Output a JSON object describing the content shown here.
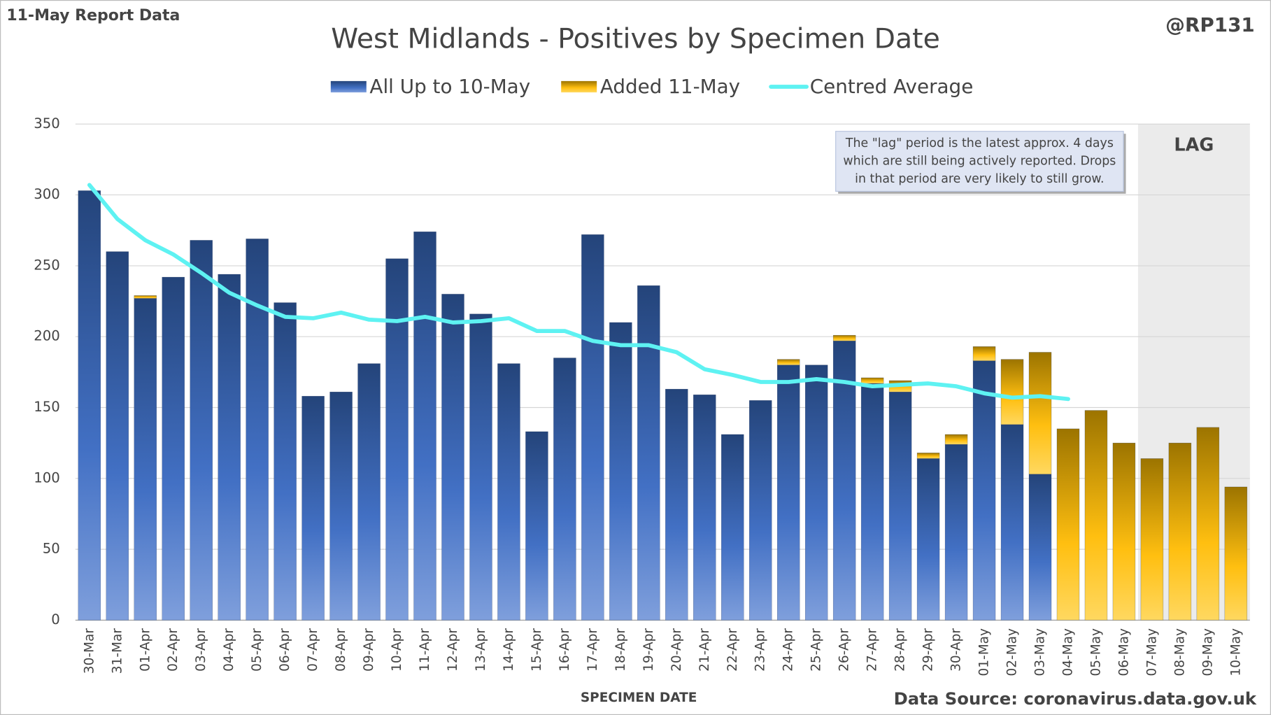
{
  "chart_data": {
    "type": "stacked_bar_line",
    "title": "West Midlands - Positives by Specimen Date",
    "report_label": "11-May Report Data",
    "handle": "@RP131",
    "source": "Data Source: coronavirus.data.gov.uk",
    "x_label": "SPECIMEN DATE",
    "annotation": [
      "The \"lag\" period is the latest approx. 4 days",
      "which are still being actively reported.  Drops",
      "in that period are very likely to still grow."
    ],
    "lag": {
      "label": "LAG",
      "from": "07-May"
    },
    "categories": [
      "30-Mar",
      "31-Mar",
      "01-Apr",
      "02-Apr",
      "03-Apr",
      "04-Apr",
      "05-Apr",
      "06-Apr",
      "07-Apr",
      "08-Apr",
      "09-Apr",
      "10-Apr",
      "11-Apr",
      "12-Apr",
      "13-Apr",
      "14-Apr",
      "15-Apr",
      "16-Apr",
      "17-Apr",
      "18-Apr",
      "19-Apr",
      "20-Apr",
      "21-Apr",
      "22-Apr",
      "23-Apr",
      "24-Apr",
      "25-Apr",
      "26-Apr",
      "27-Apr",
      "28-Apr",
      "29-Apr",
      "30-Apr",
      "01-May",
      "02-May",
      "03-May",
      "04-May",
      "05-May",
      "06-May",
      "07-May",
      "08-May",
      "09-May",
      "10-May"
    ],
    "series": [
      {
        "name": "All Up to 10-May",
        "color": "#3a62b0",
        "kind": "bar",
        "values": [
          303,
          260,
          227,
          242,
          268,
          244,
          269,
          224,
          158,
          161,
          181,
          255,
          274,
          230,
          216,
          181,
          133,
          185,
          272,
          210,
          236,
          163,
          159,
          131,
          155,
          180,
          180,
          197,
          167,
          161,
          114,
          124,
          183,
          138,
          103,
          0,
          0,
          0,
          0,
          0,
          0,
          0
        ]
      },
      {
        "name": "Added 11-May",
        "color": "#e0a800",
        "kind": "bar",
        "values": [
          0,
          0,
          2,
          0,
          0,
          0,
          0,
          0,
          0,
          0,
          0,
          0,
          0,
          0,
          0,
          0,
          0,
          0,
          0,
          0,
          0,
          0,
          0,
          0,
          0,
          4,
          0,
          4,
          4,
          8,
          4,
          7,
          10,
          46,
          86,
          135,
          148,
          125,
          114,
          125,
          136,
          94
        ]
      },
      {
        "name": "Centred Average",
        "color": "#5ef2f2",
        "kind": "line",
        "values": [
          307,
          283,
          268,
          258,
          245,
          231,
          222,
          214,
          213,
          217,
          212,
          211,
          214,
          210,
          211,
          213,
          204,
          204,
          197,
          194,
          194,
          189,
          177,
          173,
          168,
          168,
          170,
          168,
          165,
          166,
          167,
          165,
          160,
          157,
          158,
          156,
          null,
          null,
          null,
          null,
          null,
          null
        ]
      }
    ],
    "ylim": [
      0,
      350
    ],
    "yticks": [
      0,
      50,
      100,
      150,
      200,
      250,
      300,
      350
    ],
    "grid": true
  }
}
